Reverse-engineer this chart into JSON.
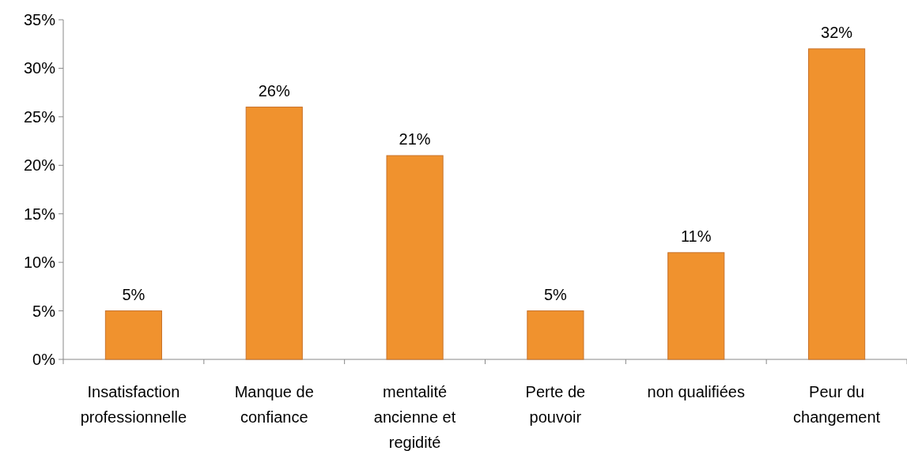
{
  "chart_data": {
    "type": "bar",
    "categories": [
      "Insatisfaction professionnelle",
      "Manque de confiance",
      "mentalité ancienne et regidité",
      "Perte de pouvoir",
      "non qualifiées",
      "Peur du changement"
    ],
    "values": [
      5,
      26,
      21,
      5,
      11,
      32
    ],
    "value_labels": [
      "5%",
      "26%",
      "21%",
      "5%",
      "11%",
      "32%"
    ],
    "color": "#f0922e",
    "ylim": [
      0,
      35
    ],
    "yticks": [
      {
        "value": 0,
        "label": "0%"
      },
      {
        "value": 5,
        "label": "5%"
      },
      {
        "value": 10,
        "label": "10%"
      },
      {
        "value": 15,
        "label": "15%"
      },
      {
        "value": 20,
        "label": "20%"
      },
      {
        "value": 25,
        "label": "25%"
      },
      {
        "value": 30,
        "label": "30%"
      },
      {
        "value": 35,
        "label": "35%"
      }
    ],
    "grid": false
  }
}
